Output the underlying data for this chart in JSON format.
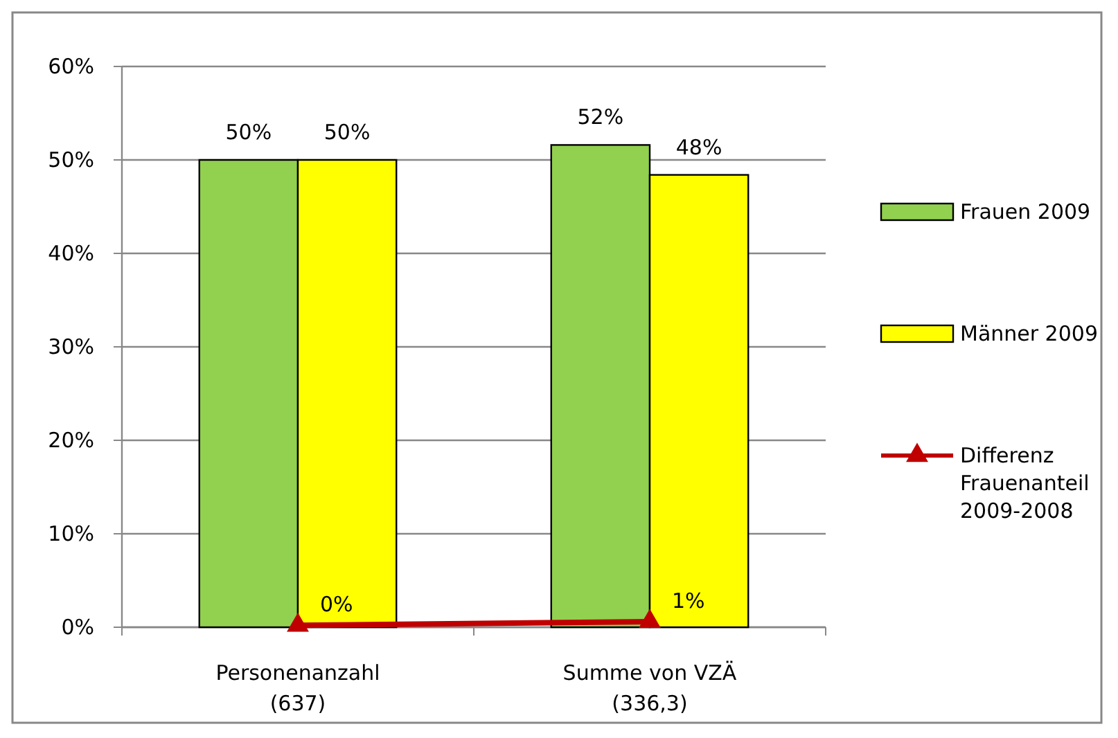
{
  "chart_data": {
    "type": "bar",
    "categories": [
      "Personenanzahl\n(637)",
      "Summe von VZÄ\n(336,3)"
    ],
    "series": [
      {
        "name": "Frauen 2009",
        "color": "#92d050",
        "values": [
          50,
          51.6
        ],
        "value_labels": [
          "50%",
          "52%"
        ]
      },
      {
        "name": "Männer 2009",
        "color": "#ffff00",
        "values": [
          50,
          48.4
        ],
        "value_labels": [
          "50%",
          "48%"
        ]
      },
      {
        "name": "Differenz Frauenanteil 2009-2008",
        "type": "line",
        "color": "#c00000",
        "marker": "triangle",
        "values": [
          0.2,
          0.6
        ],
        "value_labels": [
          "0%",
          "1%"
        ]
      }
    ],
    "ylim": [
      0,
      60
    ],
    "yticks": [
      {
        "value": 0,
        "label": "0%"
      },
      {
        "value": 10,
        "label": "10%"
      },
      {
        "value": 20,
        "label": "20%"
      },
      {
        "value": 30,
        "label": "30%"
      },
      {
        "value": 40,
        "label": "40%"
      },
      {
        "value": 50,
        "label": "50%"
      },
      {
        "value": 60,
        "label": "60%"
      }
    ],
    "grid": "y",
    "legend": "right"
  }
}
